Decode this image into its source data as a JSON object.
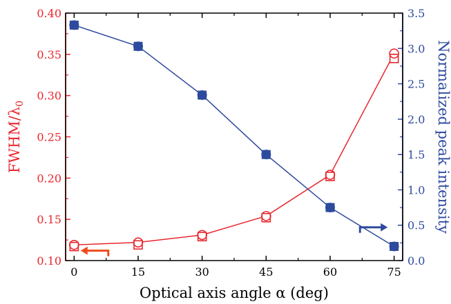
{
  "chart_data": {
    "type": "line",
    "xlabel": "Optical axis angle α (deg)",
    "ylabel_left": "FWHM/λ",
    "ylabel_left_subscript": "0",
    "ylabel_right": "Normalized peak intensity",
    "x": [
      0,
      15,
      30,
      45,
      60,
      75
    ],
    "xlim": [
      -2,
      77
    ],
    "ylim_left": [
      0.1,
      0.4
    ],
    "ylim_right": [
      0.0,
      3.5
    ],
    "x_ticks": [
      "0",
      "15",
      "30",
      "45",
      "60",
      "75"
    ],
    "y_left_ticks": [
      "0.10",
      "0.15",
      "0.20",
      "0.25",
      "0.30",
      "0.35",
      "0.40"
    ],
    "y_right_ticks": [
      "0.0",
      "0.5",
      "1.0",
      "1.5",
      "2.0",
      "2.5",
      "3.0",
      "3.5"
    ],
    "grid": false,
    "left_series": [
      {
        "values": [
          0.117,
          0.119,
          0.129,
          0.152,
          0.202,
          0.345
        ],
        "marker": "open-square"
      },
      {
        "values": [
          0.119,
          0.122,
          0.131,
          0.154,
          0.204,
          0.351
        ],
        "marker": "open-circle"
      }
    ],
    "right_series": [
      {
        "values": [
          3.33,
          3.03,
          2.34,
          1.5,
          0.75,
          0.2
        ],
        "marker": "filled-square"
      },
      {
        "values": [
          3.33,
          3.03,
          2.34,
          1.5,
          0.75,
          0.2
        ],
        "marker": "filled-circle"
      }
    ],
    "annotations": [
      {
        "type": "arrow",
        "direction": "left",
        "points_to": "left-axis",
        "anchor_x": 8,
        "anchor_y_left": 0.112
      },
      {
        "type": "arrow",
        "direction": "right",
        "points_to": "right-axis",
        "anchor_x": 67,
        "anchor_y_right": 0.47
      }
    ],
    "colors": {
      "left": "#e8262d",
      "right": "#2e4a9e",
      "arrow_left": "#f04a1e",
      "arrow_right": "#2e4a9e",
      "frame": "#000000"
    }
  }
}
